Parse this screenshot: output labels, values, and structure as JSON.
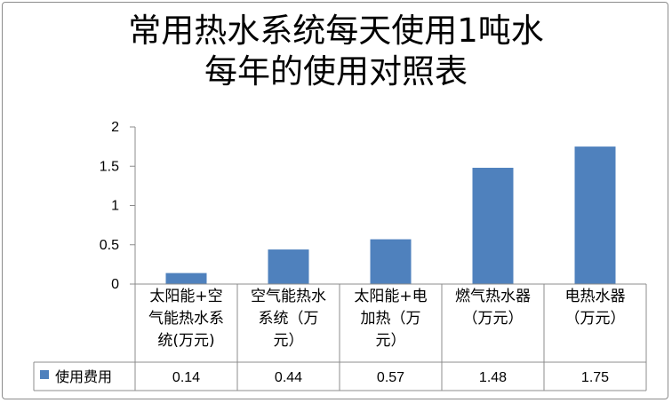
{
  "chart_data": {
    "type": "bar",
    "title_lines": [
      "常用热水系统每天使用1吨水",
      "每年的使用对照表"
    ],
    "categories": [
      [
        "太阳能+空",
        "气能热水系",
        "统(万元)"
      ],
      [
        "空气能热水",
        "系统（万",
        "元）"
      ],
      [
        "太阳能+电",
        "加热（万",
        "元）"
      ],
      [
        "燃气热水器",
        "（万元）"
      ],
      [
        "电热水器",
        "（万元）"
      ]
    ],
    "series": [
      {
        "name": "使用费用",
        "values": [
          0.14,
          0.44,
          0.57,
          1.48,
          1.75
        ],
        "color": "#4f81bd"
      }
    ],
    "value_labels": [
      "0.14",
      "0.44",
      "0.57",
      "1.48",
      "1.75"
    ],
    "yticks": [
      "0",
      "0.5",
      "1",
      "1.5",
      "2"
    ],
    "ylim": [
      0,
      2
    ],
    "grid": false,
    "data_table": true,
    "legend_position": "data-table-left"
  }
}
